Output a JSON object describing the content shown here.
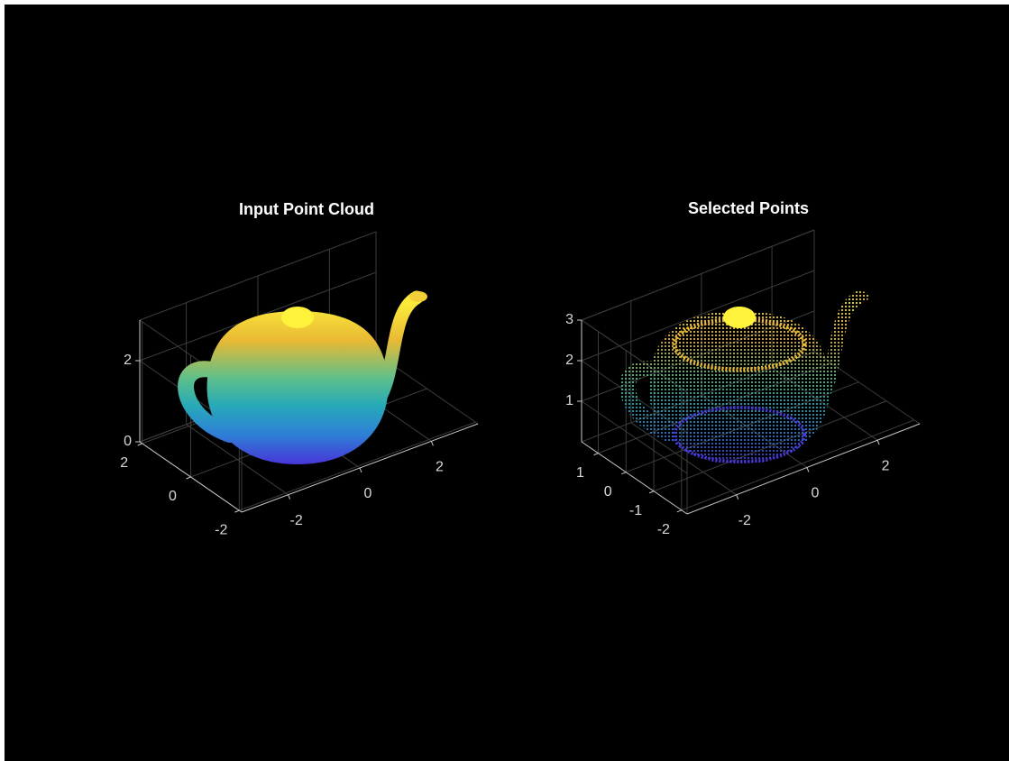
{
  "chart_data": [
    {
      "type": "scatter3d",
      "title": "Input Point Cloud",
      "xlim": [
        -3.3,
        3.3
      ],
      "ylim": [
        -2.1,
        2.1
      ],
      "zlim": [
        0,
        3
      ],
      "xticks": [
        -2,
        0,
        2
      ],
      "yticks": [
        -2,
        0,
        2
      ],
      "zticks": [
        0,
        2
      ],
      "grid": true
    },
    {
      "type": "scatter3d",
      "title": "Selected Points",
      "xlim": [
        -3.4,
        3.2
      ],
      "ylim": [
        -2.2,
        1.6
      ],
      "zlim": [
        0,
        3
      ],
      "xticks": [
        -2,
        0,
        2
      ],
      "yticks": [
        -2,
        -1,
        0,
        1
      ],
      "zticks": [
        1,
        2,
        3
      ],
      "grid": true
    }
  ]
}
